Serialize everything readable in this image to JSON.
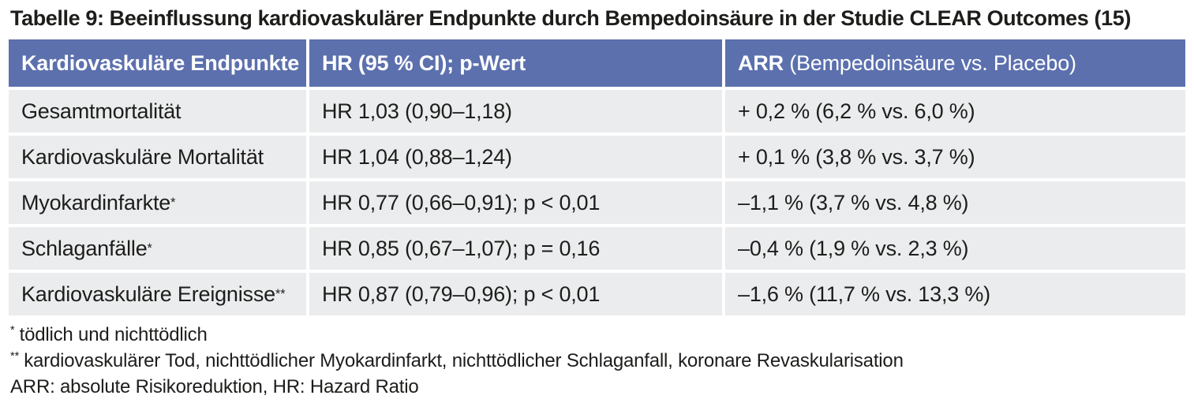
{
  "title": "Tabelle 9: Beeinflussung kardiovaskulärer Endpunkte durch Bempedoinsäure in der Studie CLEAR Outcomes (15)",
  "colors": {
    "header_bg": "#5c70ae",
    "row_bg": "#ebecee",
    "header_text": "#ffffff",
    "body_text": "#1d1d1b"
  },
  "table": {
    "headers": {
      "endpoints": "Kardiovaskuläre Endpunkte",
      "hr": "HR (95 % CI); p-Wert",
      "arr_bold": "ARR",
      "arr_rest": " (Bempedoinsäure vs. Placebo)"
    },
    "rows": [
      {
        "endpoint": "Gesamtmortalität",
        "marker": "",
        "hr": "HR 1,03 (0,90–1,18)",
        "arr": "+ 0,2 % (6,2 % vs. 6,0 %)"
      },
      {
        "endpoint": "Kardiovaskuläre Mortalität",
        "marker": "",
        "hr": "HR 1,04 (0,88–1,24)",
        "arr": "+ 0,1 % (3,8 % vs. 3,7 %)"
      },
      {
        "endpoint": "Myokardinfarkte",
        "marker": "*",
        "hr": "HR 0,77 (0,66–0,91); p < 0,01",
        "arr": "–1,1 % (3,7 % vs. 4,8 %)"
      },
      {
        "endpoint": "Schlaganfälle",
        "marker": "*",
        "hr": "HR 0,85 (0,67–1,07); p = 0,16",
        "arr": "–0,4 % (1,9 % vs. 2,3 %)"
      },
      {
        "endpoint": "Kardiovaskuläre Ereignisse",
        "marker": "**",
        "hr": "HR 0,87 (0,79–0,96); p < 0,01",
        "arr": "–1,6 % (11,7 % vs. 13,3 %)"
      }
    ]
  },
  "footnotes": [
    {
      "marker": "*",
      "text": "tödlich und nichttödlich"
    },
    {
      "marker": "**",
      "text": "kardiovaskulärer Tod, nichttödlicher Myokardinfarkt, nichttödlicher Schlaganfall, koronare Revaskularisation"
    },
    {
      "marker": "",
      "text": "ARR: absolute Risikoreduktion, HR: Hazard Ratio"
    }
  ]
}
